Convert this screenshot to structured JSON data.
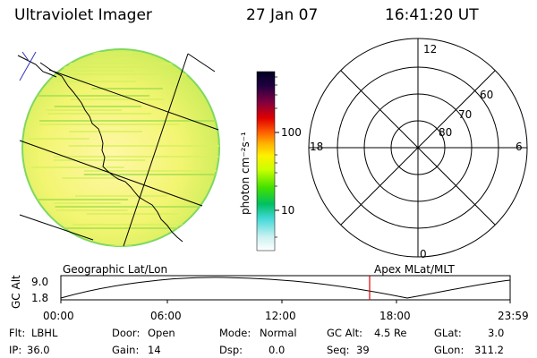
{
  "header": {
    "title": "Ultraviolet Imager",
    "date": "27 Jan 07",
    "time": "16:41:20 UT"
  },
  "colorbar": {
    "unit_label": "photon cm⁻²s⁻¹",
    "ticks": [
      "100",
      "10"
    ],
    "colors": [
      "#ffffff",
      "#c8f0f0",
      "#40d8d8",
      "#00c060",
      "#40e000",
      "#c8ff00",
      "#fff000",
      "#ffb000",
      "#ff6000",
      "#e00000",
      "#800040",
      "#200040",
      "#000020"
    ]
  },
  "polar": {
    "hour_labels": {
      "top": "12",
      "left": "18",
      "right": "6",
      "bottom": "0"
    },
    "lat_labels": [
      "60",
      "70",
      "80"
    ]
  },
  "track": {
    "left_label": "Geographic Lat/Lon",
    "right_label": "Apex MLat/MLT",
    "axis_title": "GC Alt",
    "y_max": "9.0",
    "y_min": "1.8",
    "x_ticks": [
      "00:00",
      "06:00",
      "12:00",
      "18:00",
      "23:59"
    ],
    "marker_color": "#e00000"
  },
  "info": {
    "flt_label": "Flt:",
    "flt_value": "LBHL",
    "door_label": "Door:",
    "door_value": "Open",
    "mode_label": "Mode:",
    "mode_value": "Normal",
    "gcalt_label": "GC Alt:",
    "gcalt_value": "4.5 Re",
    "glat_label": "GLat:",
    "glat_value": "3.0",
    "ip_label": "IP:",
    "ip_value": "36.0",
    "gain_label": "Gain:",
    "gain_value": "14",
    "dsp_label": "Dsp:",
    "dsp_value": "0.0",
    "seq_label": "Seq:",
    "seq_value": "39",
    "glon_label": "GLon:",
    "glon_value": "311.2"
  }
}
